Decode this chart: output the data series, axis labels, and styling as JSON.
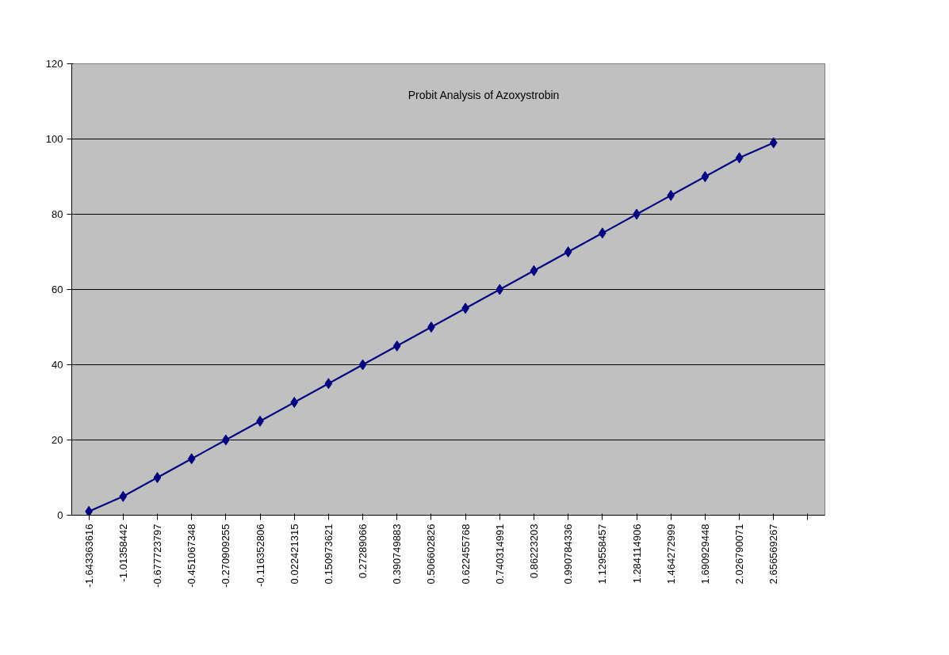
{
  "chart_data": {
    "type": "line",
    "title": "Probit Analysis of Azoxystrobin",
    "categories": [
      "-1.643363616",
      "-1.01358442",
      "-0.677723797",
      "-0.451067348",
      "-0.270909255",
      "-0.116352806",
      "0.022421315",
      "0.150973621",
      "0.27289066",
      "0.390749883",
      "0.506602826",
      "0.622455768",
      "0.740314991",
      "0.86223203",
      "0.990784336",
      "1.129558457",
      "1.284114906",
      "1.464272999",
      "1.690929448",
      "2.026790071",
      "2.656569267",
      null
    ],
    "series": [
      {
        "color": "#000080",
        "values": [
          1,
          5,
          10,
          15,
          20,
          25,
          30,
          35,
          40,
          45,
          50,
          55,
          60,
          65,
          70,
          75,
          80,
          85,
          90,
          95,
          99,
          null
        ]
      }
    ],
    "ylim": [
      0,
      120
    ],
    "yticks": [
      0,
      20,
      40,
      60,
      80,
      100,
      120
    ],
    "grid": "y",
    "marker": "diamond",
    "line_style": "solid"
  }
}
